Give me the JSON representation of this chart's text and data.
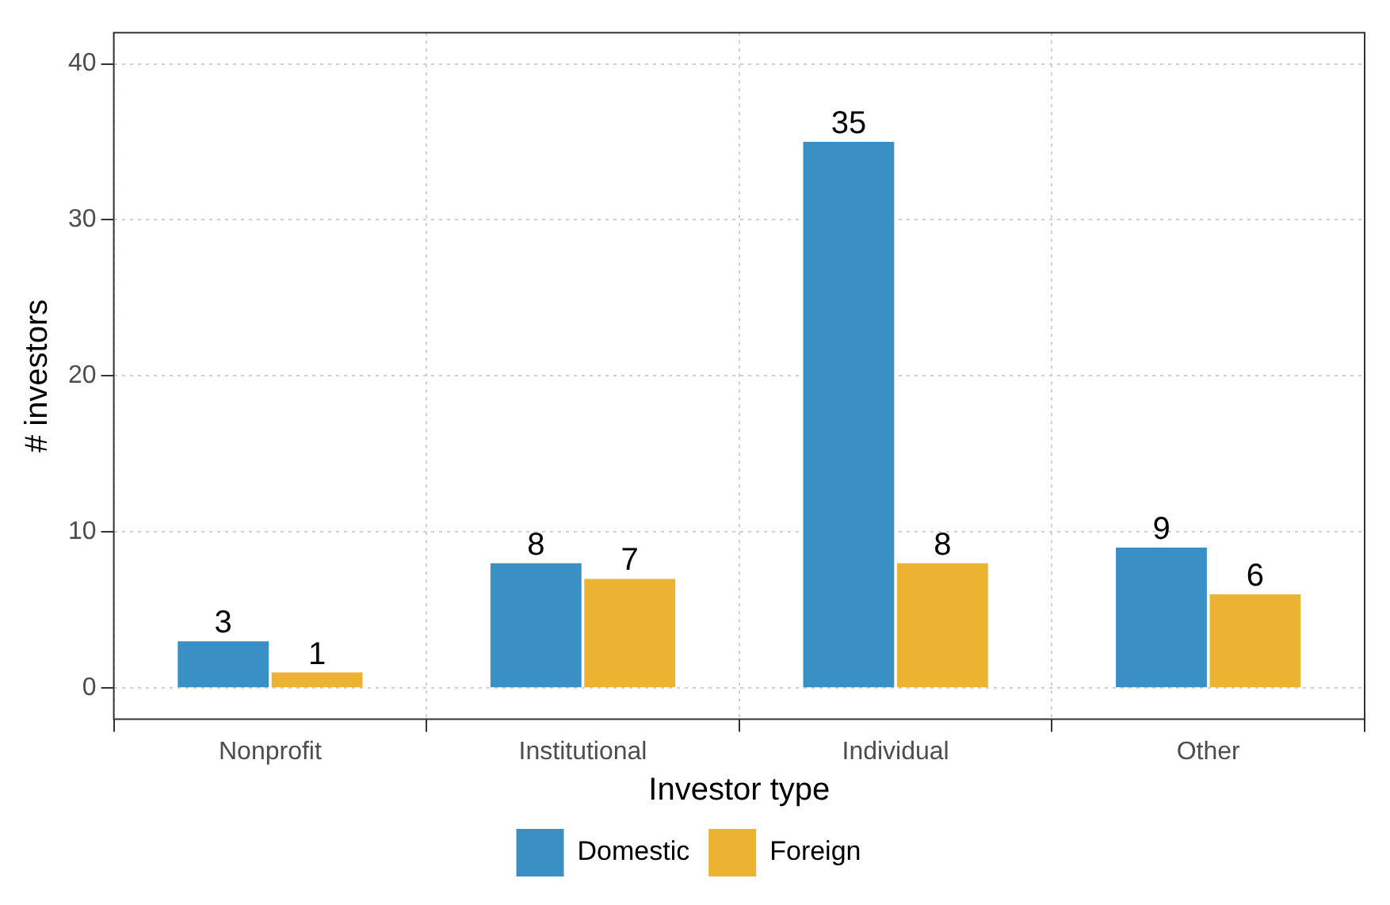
{
  "chart_data": {
    "type": "bar",
    "xlabel": "Investor type",
    "ylabel": "# investors",
    "categories": [
      "Nonprofit",
      "Institutional",
      "Individual",
      "Other"
    ],
    "series": [
      {
        "name": "Domestic",
        "color": "#3a8fc4",
        "values": [
          3,
          8,
          35,
          9
        ]
      },
      {
        "name": "Foreign",
        "color": "#ecb232",
        "values": [
          1,
          7,
          8,
          6
        ]
      }
    ],
    "ylim": [
      -2,
      42
    ],
    "yticks": [
      0,
      10,
      20,
      30,
      40
    ],
    "grid": true,
    "legend": "bottom",
    "data_labels": true
  }
}
